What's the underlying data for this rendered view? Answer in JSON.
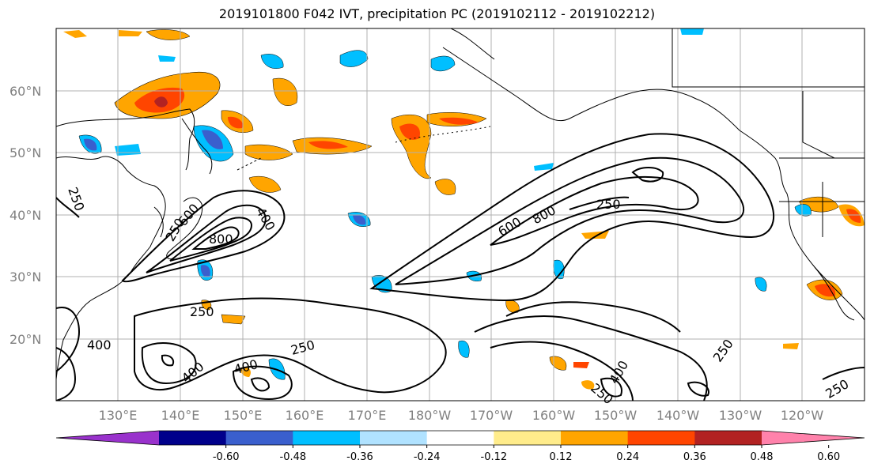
{
  "title": "2019101800 F042 IVT, precipitation PC (2019102112 - 2019102212)",
  "lat_ticks": [
    "60°N",
    "50°N",
    "40°N",
    "30°N",
    "20°N"
  ],
  "lon_ticks": [
    "130°E",
    "140°E",
    "150°E",
    "160°E",
    "170°E",
    "180°W",
    "170°W",
    "160°W",
    "150°W",
    "140°W",
    "130°W",
    "120°W"
  ],
  "contour_labels": [
    "250",
    "400",
    "600",
    "800",
    "250",
    "400",
    "250",
    "400",
    "250",
    "400",
    "600",
    "800",
    "250",
    "400",
    "250",
    "250",
    "250"
  ],
  "colorbar": {
    "ticks": [
      "-0.60",
      "-0.48",
      "-0.36",
      "-0.24",
      "-0.12",
      "0.12",
      "0.24",
      "0.36",
      "0.48",
      "0.60"
    ],
    "colors": [
      "#9932cc",
      "#00008b",
      "#3a5fcd",
      "#00bfff",
      "#b0e2ff",
      "#ffffff",
      "#ffec8b",
      "#ffa500",
      "#ff4500",
      "#b22222",
      "#ff82ab"
    ]
  },
  "colors": {
    "contour": "#000000",
    "grid": "#b0b0b0",
    "coast": "#000000"
  }
}
